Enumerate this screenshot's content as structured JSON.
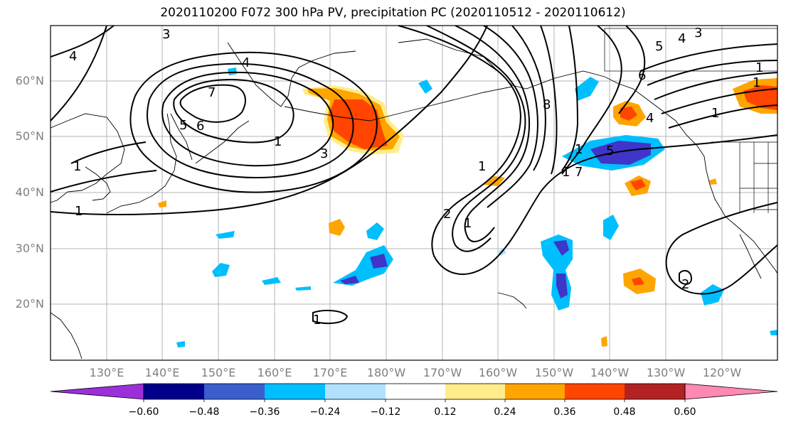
{
  "title": "2020110200 F072 300 hPa PV, precipitation PC (2020110512 - 2020110612)",
  "map": {
    "lat_labels": [
      "60°N",
      "50°N",
      "40°N",
      "30°N",
      "20°N"
    ],
    "lon_labels": [
      "130°E",
      "140°E",
      "150°E",
      "160°E",
      "170°E",
      "180°W",
      "170°W",
      "160°W",
      "150°W",
      "140°W",
      "130°W",
      "120°W"
    ],
    "contour_labels": [
      "3",
      "4",
      "4",
      "7",
      "6",
      "5",
      "1",
      "1",
      "1",
      "3",
      "1",
      "1",
      "1",
      "8",
      "5",
      "1",
      "7",
      "1",
      "1",
      "2",
      "5",
      "4",
      "3",
      "6",
      "4",
      "1",
      "1",
      "2"
    ],
    "shading_colors": {
      "neg_strong": "#3f35c9",
      "neg_mid": "#1f6fe0",
      "neg_light": "#00bfff",
      "neg_pale": "#aee1fb",
      "pos_pale": "#ffed8a",
      "pos_light": "#ffa500",
      "pos_mid": "#ff4500",
      "pos_strong": "#b22222"
    }
  },
  "colorbar": {
    "colors": [
      "#9b30d9",
      "#9932cc",
      "#00008b",
      "#3a5fcd",
      "#00bfff",
      "#b0e2ff",
      "#ffffff",
      "#ffec8b",
      "#ffa500",
      "#ff4500",
      "#b22222",
      "#ff88b4"
    ],
    "labels": [
      "−0.60",
      "−0.48",
      "−0.36",
      "−0.24",
      "−0.12",
      "0.12",
      "0.24",
      "0.36",
      "0.48",
      "0.60"
    ]
  }
}
